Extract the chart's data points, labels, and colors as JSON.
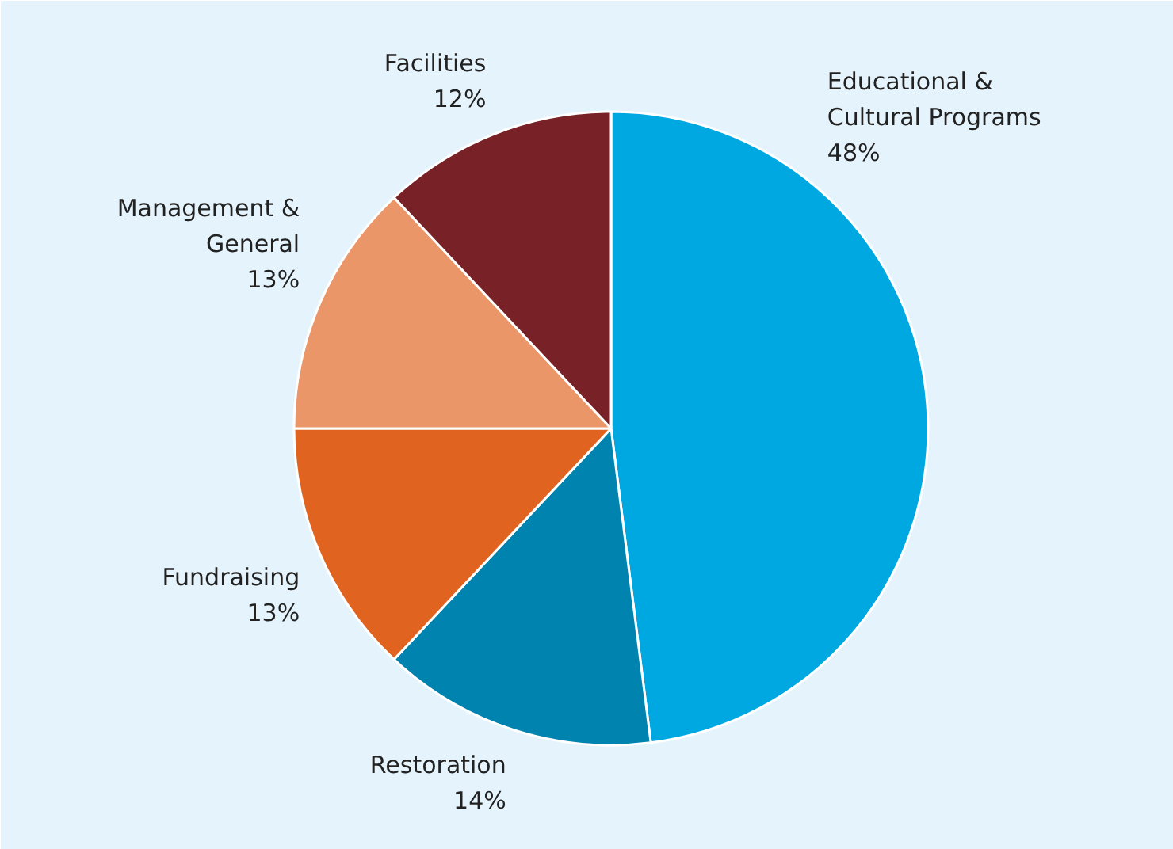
{
  "chart_data": {
    "type": "pie",
    "categories": [
      "Educational &\nCultural Programs",
      "Restoration",
      "Fundraising",
      "Management &\nGeneral",
      "Facilities"
    ],
    "values": [
      48,
      14,
      13,
      13,
      12
    ],
    "value_labels": [
      "48%",
      "14%",
      "13%",
      "13%",
      "12%"
    ],
    "colors": [
      "#00a8e1",
      "#0083ae",
      "#e06420",
      "#eb9668",
      "#782126"
    ]
  }
}
